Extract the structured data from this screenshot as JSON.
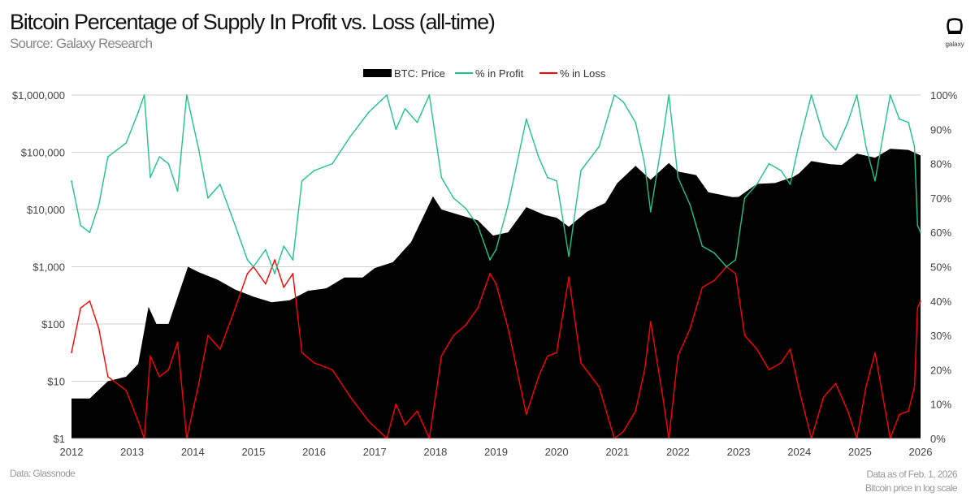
{
  "header": {
    "title": "Bitcoin Percentage of Supply In Profit vs. Loss (all-time)",
    "subtitle": "Source: Galaxy Research",
    "logo_text": "galaxy"
  },
  "footer": {
    "data_source": "Data: Glassnode",
    "data_as_of": "Data as of Feb. 1, 2026",
    "scale_note": "Bitcoin price in log scale"
  },
  "chart_data": {
    "type": "area+line",
    "title": "Bitcoin Percentage of Supply In Profit vs. Loss (all-time)",
    "legend_position": "top-center",
    "grid": true,
    "x_ticks": [
      "2012",
      "2013",
      "2014",
      "2015",
      "2016",
      "2017",
      "2018",
      "2019",
      "2020",
      "2021",
      "2022",
      "2023",
      "2024",
      "2025",
      "2026"
    ],
    "xlim": [
      2012,
      2026
    ],
    "y_left": {
      "scale": "log",
      "lim": [
        1,
        1000000
      ],
      "ticks": [
        1,
        10,
        100,
        1000,
        10000,
        100000,
        1000000
      ],
      "tick_labels": [
        "$1",
        "$10",
        "$100",
        "$1,000",
        "$10,000",
        "$100,000",
        "$1,000,000"
      ]
    },
    "y_right": {
      "scale": "linear",
      "lim": [
        0,
        100
      ],
      "ticks": [
        0,
        10,
        20,
        30,
        40,
        50,
        60,
        70,
        80,
        90,
        100
      ],
      "tick_labels": [
        "0%",
        "10%",
        "20%",
        "30%",
        "40%",
        "50%",
        "60%",
        "70%",
        "80%",
        "90%",
        "100%"
      ]
    },
    "colors": {
      "price": "#000000",
      "profit": "#1fc48b",
      "loss": "#ff0000"
    },
    "series": [
      {
        "name": "BTC: Price",
        "axis": "left",
        "kind": "area",
        "x": [
          2012.0,
          2012.3,
          2012.6,
          2012.9,
          2013.1,
          2013.27,
          2013.4,
          2013.6,
          2013.92,
          2014.1,
          2014.4,
          2014.7,
          2015.0,
          2015.3,
          2015.6,
          2015.9,
          2016.2,
          2016.5,
          2016.8,
          2017.0,
          2017.3,
          2017.6,
          2017.96,
          2018.1,
          2018.4,
          2018.7,
          2018.95,
          2019.2,
          2019.5,
          2019.8,
          2020.0,
          2020.2,
          2020.5,
          2020.8,
          2021.0,
          2021.3,
          2021.55,
          2021.85,
          2022.0,
          2022.3,
          2022.5,
          2022.9,
          2023.0,
          2023.3,
          2023.6,
          2023.9,
          2024.0,
          2024.2,
          2024.5,
          2024.7,
          2024.95,
          2025.25,
          2025.5,
          2025.8,
          2026.0
        ],
        "values": [
          5,
          5,
          10,
          12,
          20,
          200,
          100,
          100,
          1000,
          800,
          600,
          400,
          300,
          240,
          260,
          380,
          420,
          650,
          650,
          950,
          1200,
          2700,
          17000,
          10000,
          8000,
          6500,
          3500,
          4000,
          11000,
          8000,
          7200,
          5000,
          9200,
          13000,
          29000,
          58000,
          33000,
          65000,
          46000,
          40000,
          20000,
          16500,
          16600,
          28000,
          29000,
          37000,
          43000,
          70000,
          62000,
          60000,
          95000,
          80000,
          115000,
          110000,
          88000
        ]
      },
      {
        "name": "% in Profit",
        "axis": "right",
        "kind": "line",
        "x": [
          2012.0,
          2012.15,
          2012.3,
          2012.45,
          2012.6,
          2012.9,
          2013.1,
          2013.2,
          2013.3,
          2013.45,
          2013.6,
          2013.75,
          2013.9,
          2014.1,
          2014.25,
          2014.45,
          2014.7,
          2014.9,
          2015.0,
          2015.2,
          2015.35,
          2015.5,
          2015.65,
          2015.8,
          2016.0,
          2016.3,
          2016.6,
          2016.9,
          2017.2,
          2017.35,
          2017.5,
          2017.7,
          2017.9,
          2018.1,
          2018.3,
          2018.5,
          2018.7,
          2018.9,
          2019.0,
          2019.2,
          2019.5,
          2019.7,
          2019.85,
          2020.0,
          2020.2,
          2020.4,
          2020.7,
          2020.95,
          2021.1,
          2021.3,
          2021.45,
          2021.55,
          2021.75,
          2021.85,
          2022.0,
          2022.2,
          2022.4,
          2022.6,
          2022.8,
          2022.95,
          2023.1,
          2023.3,
          2023.5,
          2023.7,
          2023.85,
          2024.0,
          2024.2,
          2024.4,
          2024.6,
          2024.8,
          2024.95,
          2025.1,
          2025.25,
          2025.4,
          2025.5,
          2025.65,
          2025.8,
          2025.9,
          2025.95,
          2026.0
        ],
        "values": [
          75,
          62,
          60,
          68,
          82,
          86,
          95,
          100,
          76,
          82,
          80,
          72,
          100,
          84,
          70,
          74,
          62,
          52,
          50,
          55,
          48,
          56,
          52,
          75,
          78,
          80,
          88,
          95,
          100,
          90,
          96,
          92,
          100,
          76,
          70,
          67,
          62,
          52,
          55,
          68,
          93,
          82,
          76,
          75,
          53,
          78,
          85,
          100,
          98,
          92,
          80,
          66,
          88,
          100,
          76,
          68,
          56,
          54,
          50,
          52,
          70,
          74,
          80,
          78,
          74,
          86,
          100,
          88,
          84,
          92,
          100,
          85,
          75,
          90,
          100,
          93,
          92,
          85,
          62,
          60
        ]
      },
      {
        "name": "% in Loss",
        "axis": "right",
        "kind": "line",
        "x": [
          2012.0,
          2012.15,
          2012.3,
          2012.45,
          2012.6,
          2012.9,
          2013.1,
          2013.2,
          2013.3,
          2013.45,
          2013.6,
          2013.75,
          2013.9,
          2014.1,
          2014.25,
          2014.45,
          2014.7,
          2014.9,
          2015.0,
          2015.2,
          2015.35,
          2015.5,
          2015.65,
          2015.8,
          2016.0,
          2016.3,
          2016.6,
          2016.9,
          2017.2,
          2017.35,
          2017.5,
          2017.7,
          2017.9,
          2018.1,
          2018.3,
          2018.5,
          2018.7,
          2018.9,
          2019.0,
          2019.2,
          2019.5,
          2019.7,
          2019.85,
          2020.0,
          2020.2,
          2020.4,
          2020.7,
          2020.95,
          2021.1,
          2021.3,
          2021.45,
          2021.55,
          2021.75,
          2021.85,
          2022.0,
          2022.2,
          2022.4,
          2022.6,
          2022.8,
          2022.95,
          2023.1,
          2023.3,
          2023.5,
          2023.7,
          2023.85,
          2024.0,
          2024.2,
          2024.4,
          2024.6,
          2024.8,
          2024.95,
          2025.1,
          2025.25,
          2025.4,
          2025.5,
          2025.65,
          2025.8,
          2025.9,
          2025.95,
          2026.0
        ],
        "values": [
          25,
          38,
          40,
          32,
          18,
          14,
          5,
          0,
          24,
          18,
          20,
          28,
          0,
          16,
          30,
          26,
          38,
          48,
          50,
          45,
          52,
          44,
          48,
          25,
          22,
          20,
          12,
          5,
          0,
          10,
          4,
          8,
          0,
          24,
          30,
          33,
          38,
          48,
          45,
          32,
          7,
          18,
          24,
          25,
          47,
          22,
          15,
          0,
          2,
          8,
          20,
          34,
          12,
          0,
          24,
          32,
          44,
          46,
          50,
          48,
          30,
          26,
          20,
          22,
          26,
          14,
          0,
          12,
          16,
          8,
          0,
          15,
          25,
          10,
          0,
          7,
          8,
          15,
          38,
          40
        ]
      }
    ]
  }
}
